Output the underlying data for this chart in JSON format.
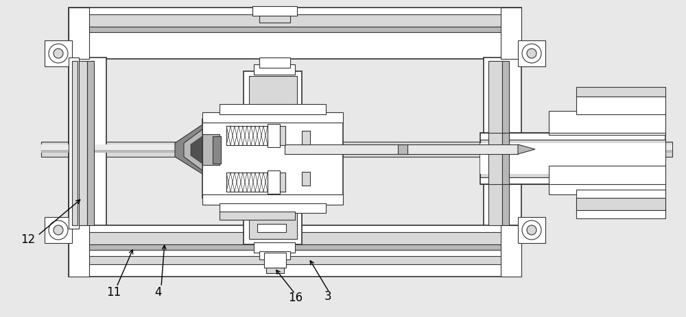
{
  "background_color": "#e8e8e8",
  "line_color": "#333333",
  "white": "#ffffff",
  "light_gray": "#d8d8d8",
  "mid_gray": "#b8b8b8",
  "dark_gray": "#888888",
  "figsize": [
    10.0,
    4.64
  ],
  "dpi": 100
}
